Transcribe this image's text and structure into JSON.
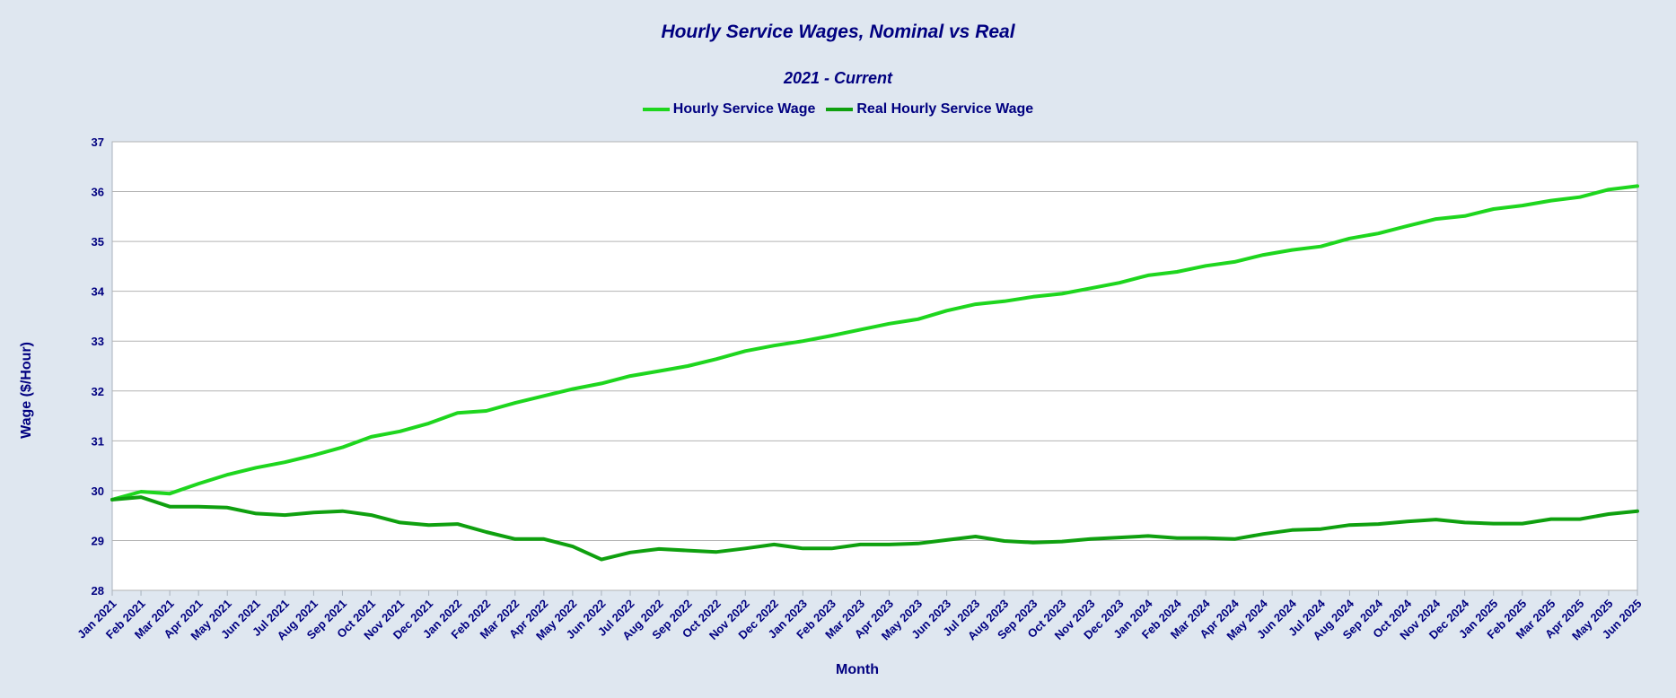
{
  "chart_data": {
    "type": "line",
    "title": "Hourly Service Wages, Nominal vs Real",
    "subtitle": "2021 - Current",
    "xlabel": "Month",
    "ylabel": "Wage ($/Hour)",
    "ylim": [
      28,
      37
    ],
    "yticks": [
      28,
      29,
      30,
      31,
      32,
      33,
      34,
      35,
      36,
      37
    ],
    "grid": true,
    "legend_position": "top",
    "categories": [
      "Jan 2021",
      "Feb 2021",
      "Mar 2021",
      "Apr 2021",
      "May 2021",
      "Jun 2021",
      "Jul 2021",
      "Aug 2021",
      "Sep 2021",
      "Oct 2021",
      "Nov 2021",
      "Dec 2021",
      "Jan 2022",
      "Feb 2022",
      "Mar 2022",
      "Apr 2022",
      "May 2022",
      "Jun 2022",
      "Jul 2022",
      "Aug 2022",
      "Sep 2022",
      "Oct 2022",
      "Nov 2022",
      "Dec 2022",
      "Jan 2023",
      "Feb 2023",
      "Mar 2023",
      "Apr 2023",
      "May 2023",
      "Jun 2023",
      "Jul 2023",
      "Aug 2023",
      "Sep 2023",
      "Oct 2023",
      "Nov 2023",
      "Dec 2023",
      "Jan 2024",
      "Feb 2024",
      "Mar 2024",
      "Apr 2024",
      "May 2024",
      "Jun 2024",
      "Jul 2024",
      "Aug 2024",
      "Sep 2024",
      "Oct 2024",
      "Nov 2024",
      "Dec 2024",
      "Jan 2025",
      "Feb 2025",
      "Mar 2025",
      "Apr 2025",
      "May 2025",
      "Jun 2025"
    ],
    "series": [
      {
        "name": "Hourly Service Wage",
        "color": "#1ed61e",
        "values": [
          29.82,
          29.98,
          29.94,
          30.14,
          30.32,
          30.46,
          30.57,
          30.71,
          30.87,
          31.08,
          31.19,
          31.35,
          31.56,
          31.6,
          31.76,
          31.9,
          32.04,
          32.15,
          32.3,
          32.4,
          32.5,
          32.64,
          32.8,
          32.91,
          33.0,
          33.11,
          33.23,
          33.35,
          33.44,
          33.61,
          33.74,
          33.8,
          33.89,
          33.95,
          34.06,
          34.17,
          34.32,
          34.39,
          34.51,
          34.59,
          34.73,
          34.83,
          34.9,
          35.06,
          35.16,
          35.31,
          35.45,
          35.51,
          35.65,
          35.72,
          35.82,
          35.89,
          36.04,
          36.11
        ]
      },
      {
        "name": "Real Hourly Service  Wage",
        "color": "#0fa00f",
        "values": [
          29.82,
          29.87,
          29.68,
          29.68,
          29.66,
          29.54,
          29.51,
          29.56,
          29.59,
          29.51,
          29.36,
          29.31,
          29.33,
          29.17,
          29.03,
          29.03,
          28.88,
          28.62,
          28.76,
          28.83,
          28.8,
          28.77,
          28.84,
          28.92,
          28.84,
          28.84,
          28.92,
          28.92,
          28.94,
          29.01,
          29.08,
          28.99,
          28.96,
          28.98,
          29.03,
          29.06,
          29.09,
          29.05,
          29.05,
          29.03,
          29.13,
          29.21,
          29.23,
          29.31,
          29.33,
          29.38,
          29.42,
          29.36,
          29.34,
          29.34,
          29.43,
          29.43,
          29.53,
          29.59
        ]
      }
    ]
  }
}
